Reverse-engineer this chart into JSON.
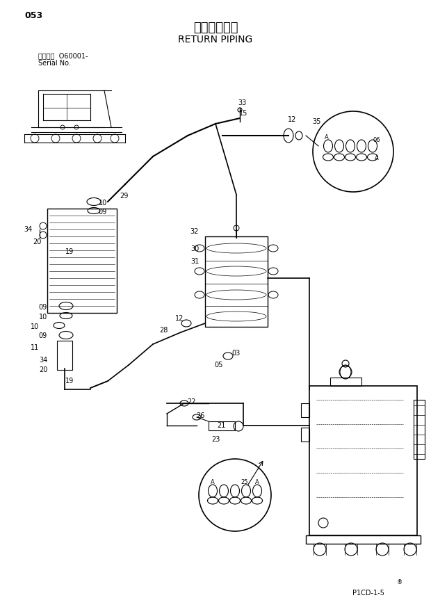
{
  "title_japanese": "リターン配管",
  "title_english": "RETURN PIPING",
  "page_number": "053",
  "serial_label": "適用号機  O60001-",
  "serial_label2": "Serial No.",
  "diagram_code": "P1CD-1-5",
  "background_color": "#ffffff",
  "line_color": "#000000",
  "text_color": "#000000",
  "font_size_title": 13,
  "font_size_label": 7,
  "font_size_page": 9
}
